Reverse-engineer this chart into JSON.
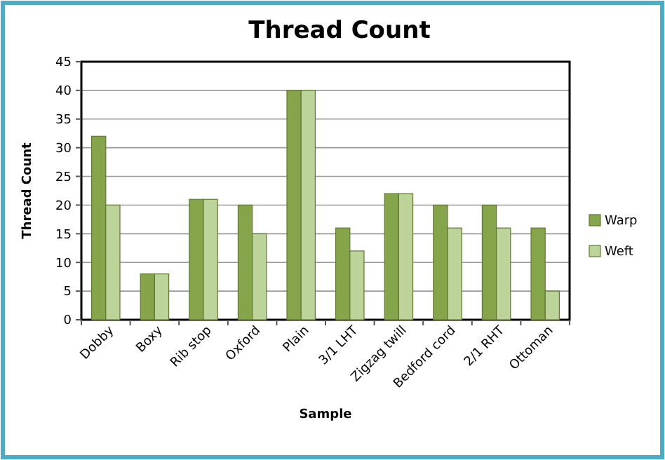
{
  "chart_data": {
    "type": "bar",
    "title": "Thread Count",
    "xlabel": "Sample",
    "ylabel": "Thread Count",
    "categories": [
      "Dobby",
      "Boxy",
      "Rib stop",
      "Oxford",
      "Plain",
      "3/1 LHT",
      "Zigzag twill",
      "Bedford cord",
      "2/1 RHT",
      "Ottoman"
    ],
    "series": [
      {
        "name": "Warp",
        "color": "#86a44a",
        "values": [
          32,
          8,
          21,
          20,
          40,
          16,
          22,
          20,
          20,
          16
        ]
      },
      {
        "name": "Weft",
        "color": "#bcd39a",
        "values": [
          20,
          8,
          21,
          15,
          40,
          12,
          22,
          16,
          16,
          5
        ]
      }
    ],
    "ylim": [
      0,
      45
    ],
    "yticks": [
      0,
      5,
      10,
      15,
      20,
      25,
      30,
      35,
      40,
      45
    ],
    "grid": "y",
    "legend": "right"
  }
}
